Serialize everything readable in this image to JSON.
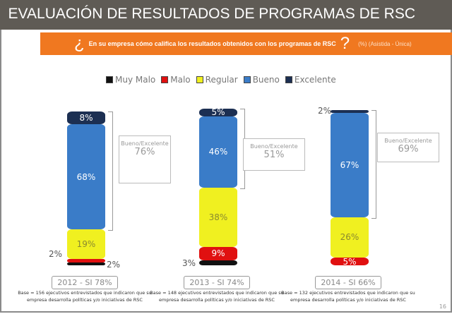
{
  "title": "EVALUACIÓN DE RESULTADOS DE PROGRAMAS DE RSC",
  "question": {
    "open": "¿",
    "text": "En su empresa cómo califica los resultados obtenidos con los programas de RSC",
    "close": "?",
    "note": "(%) (Asistida - Única)"
  },
  "page_number": "16",
  "chart_data": {
    "type": "stacked-bar",
    "categories": [
      "2012 - SI 78%",
      "2013 - SI 74%",
      "2014 - SI 66%"
    ],
    "series": [
      {
        "name": "Muy Malo",
        "color": "#111111",
        "values": [
          2,
          3,
          0
        ],
        "labels": [
          "2%",
          "3%",
          ""
        ]
      },
      {
        "name": "Malo",
        "color": "#e01010",
        "values": [
          2,
          9,
          5
        ],
        "labels": [
          "2%",
          "9%",
          "5%"
        ]
      },
      {
        "name": "Regular",
        "color": "#f0f020",
        "values": [
          19,
          38,
          26
        ],
        "labels": [
          "19%",
          "38%",
          "26%"
        ]
      },
      {
        "name": "Bueno",
        "color": "#3a7cc8",
        "values": [
          68,
          46,
          67
        ],
        "labels": [
          "68%",
          "46%",
          "67%"
        ]
      },
      {
        "name": "Excelente",
        "color": "#1c2f52",
        "values": [
          8,
          5,
          2
        ],
        "labels": [
          "8%",
          "5%",
          "2%"
        ]
      }
    ],
    "annotations": [
      {
        "label": "Bueno/Excelente",
        "value": "76%"
      },
      {
        "label": "Bueno/Excelente",
        "value": "51%"
      },
      {
        "label": "Bueno/Excelente",
        "value": "69%"
      }
    ],
    "bases": [
      "Base = 156 ejecutivos entrevistados que indicaron que su empresa desarrolla políticas y/o iniciativas de RSC",
      "Base = 148 ejecutivos entrevistados que indicaron que su empresa desarrolla políticas y/o iniciativas de RSC",
      "Base = 132 ejecutivos entrevistados que indicaron que su empresa desarrolla políticas y/o iniciativas de RSC"
    ],
    "legend_position": "top"
  }
}
